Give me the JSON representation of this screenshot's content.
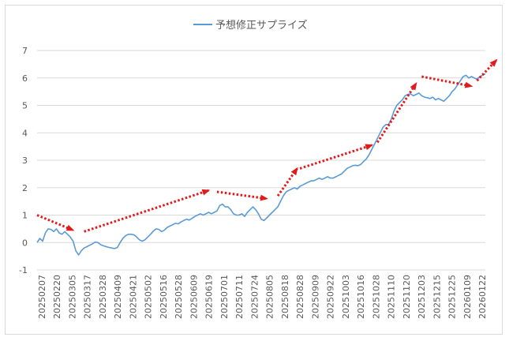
{
  "chart_data": {
    "type": "line",
    "title": "",
    "xlabel": "",
    "ylabel": "",
    "legend": {
      "position": "top-center",
      "entries": [
        "予想修正サプライズ"
      ]
    },
    "ylim": [
      -1,
      7
    ],
    "yticks": [
      -1,
      0,
      1,
      2,
      3,
      4,
      5,
      6,
      7
    ],
    "grid": {
      "horizontal": true,
      "vertical": false
    },
    "colors": {
      "series": "#5b9bd5",
      "annotation": "#e31a1c",
      "grid": "#d9d9d9",
      "text": "#595959"
    },
    "x_tick_labels": [
      "20250207",
      "20250220",
      "20250305",
      "20250317",
      "20250328",
      "20250409",
      "20250421",
      "20250502",
      "20250516",
      "20250528",
      "20250609",
      "20250619",
      "20250701",
      "20250711",
      "20250724",
      "20250805",
      "20250818",
      "20250828",
      "20250909",
      "20250922",
      "20251003",
      "20251016",
      "20251028",
      "20251110",
      "20251120",
      "20251203",
      "20251215",
      "20251225",
      "20260109",
      "20260122"
    ],
    "series": [
      {
        "name": "予想修正サプライズ",
        "values": [
          0.0,
          0.15,
          0.05,
          0.35,
          0.5,
          0.48,
          0.4,
          0.5,
          0.35,
          0.3,
          0.4,
          0.3,
          0.2,
          0.05,
          -0.3,
          -0.45,
          -0.3,
          -0.2,
          -0.15,
          -0.1,
          -0.05,
          0.02,
          0.0,
          -0.08,
          -0.12,
          -0.15,
          -0.18,
          -0.2,
          -0.22,
          -0.18,
          0.0,
          0.15,
          0.25,
          0.3,
          0.3,
          0.28,
          0.2,
          0.1,
          0.05,
          0.1,
          0.2,
          0.3,
          0.42,
          0.5,
          0.48,
          0.4,
          0.45,
          0.55,
          0.6,
          0.65,
          0.7,
          0.68,
          0.75,
          0.8,
          0.85,
          0.82,
          0.88,
          0.95,
          1.0,
          1.05,
          1.0,
          1.05,
          1.1,
          1.05,
          1.1,
          1.15,
          1.35,
          1.4,
          1.3,
          1.3,
          1.2,
          1.05,
          1.0,
          1.0,
          1.05,
          0.95,
          1.1,
          1.2,
          1.3,
          1.2,
          1.05,
          0.85,
          0.8,
          0.9,
          1.0,
          1.1,
          1.2,
          1.3,
          1.5,
          1.7,
          1.85,
          1.9,
          1.95,
          2.0,
          1.95,
          2.05,
          2.1,
          2.15,
          2.2,
          2.25,
          2.25,
          2.3,
          2.35,
          2.3,
          2.35,
          2.4,
          2.35,
          2.35,
          2.4,
          2.45,
          2.5,
          2.6,
          2.7,
          2.75,
          2.8,
          2.82,
          2.8,
          2.85,
          2.95,
          3.05,
          3.2,
          3.4,
          3.6,
          3.8,
          4.0,
          4.2,
          4.3,
          4.3,
          4.5,
          4.8,
          5.0,
          5.1,
          5.2,
          5.35,
          5.4,
          5.42,
          5.35,
          5.4,
          5.45,
          5.35,
          5.3,
          5.28,
          5.25,
          5.3,
          5.2,
          5.25,
          5.2,
          5.15,
          5.25,
          5.35,
          5.5,
          5.6,
          5.75,
          5.9,
          6.05,
          6.1,
          6.0,
          6.05,
          6.0,
          5.95,
          6.05,
          6.1,
          6.15
        ]
      }
    ],
    "annotations": [
      {
        "type": "arrow",
        "from": [
          0,
          1.0
        ],
        "to": [
          13,
          0.45
        ]
      },
      {
        "type": "arrow",
        "from": [
          17,
          0.4
        ],
        "to": [
          62,
          1.9
        ]
      },
      {
        "type": "arrow",
        "from": [
          65,
          1.85
        ],
        "to": [
          83,
          1.6
        ]
      },
      {
        "type": "arrow",
        "from": [
          87,
          1.7
        ],
        "to": [
          94,
          2.7
        ]
      },
      {
        "type": "arrow",
        "from": [
          95,
          2.7
        ],
        "to": [
          121,
          3.55
        ]
      },
      {
        "type": "arrow",
        "from": [
          123,
          3.65
        ],
        "to": [
          137,
          5.8
        ]
      },
      {
        "type": "arrow",
        "from": [
          139,
          6.05
        ],
        "to": [
          157,
          5.7
        ]
      },
      {
        "type": "arrow",
        "from": [
          159,
          5.9
        ],
        "to": [
          166,
          6.65
        ]
      }
    ]
  }
}
